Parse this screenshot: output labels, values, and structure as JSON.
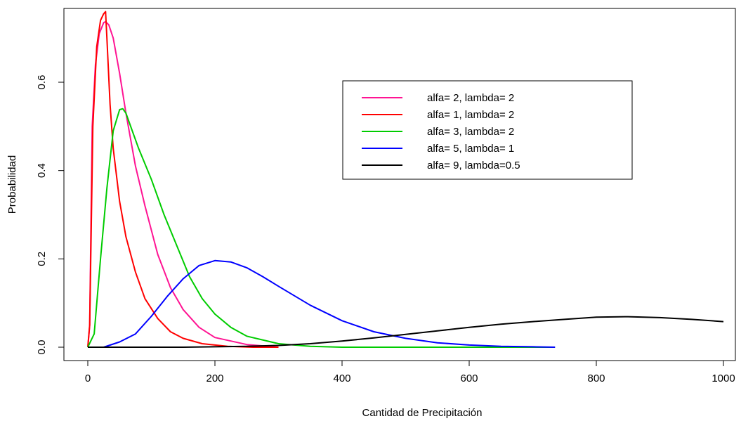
{
  "chart_data": {
    "type": "line",
    "title": "",
    "xlabel": "Cantidad de Precipitación",
    "ylabel": "Probabilidad",
    "xlim": [
      0,
      1000
    ],
    "ylim": [
      0,
      0.76
    ],
    "x_ticks": [
      0,
      200,
      400,
      600,
      800,
      1000
    ],
    "x_tick_labels": [
      "0",
      "200",
      "400",
      "600",
      "800",
      "1000"
    ],
    "y_ticks": [
      0.0,
      0.2,
      0.4,
      0.6
    ],
    "y_tick_labels": [
      "0.0",
      "0.2",
      "0.4",
      "0.6"
    ],
    "grid": false,
    "legend_position": "top-right",
    "series": [
      {
        "name": "alfa= 2, lambda= 2",
        "color": "#ff1493",
        "x": [
          0,
          3,
          7,
          12,
          18,
          25,
          28,
          33,
          40,
          50,
          60,
          75,
          90,
          110,
          130,
          150,
          175,
          200,
          250,
          300
        ],
        "y": [
          0.0,
          0.05,
          0.5,
          0.64,
          0.71,
          0.735,
          0.737,
          0.73,
          0.7,
          0.62,
          0.53,
          0.41,
          0.32,
          0.21,
          0.135,
          0.085,
          0.045,
          0.022,
          0.006,
          0.0
        ]
      },
      {
        "name": "alfa= 1, lambda= 2",
        "color": "#ff0000",
        "x": [
          0,
          3,
          8,
          14,
          20,
          25,
          28,
          30,
          35,
          40,
          50,
          60,
          75,
          90,
          110,
          130,
          150,
          180,
          220,
          260,
          300
        ],
        "y": [
          0.0,
          0.05,
          0.5,
          0.68,
          0.74,
          0.755,
          0.76,
          0.7,
          0.55,
          0.45,
          0.33,
          0.25,
          0.17,
          0.11,
          0.065,
          0.035,
          0.02,
          0.008,
          0.002,
          0.0,
          0.0
        ]
      },
      {
        "name": "alfa= 3, lambda= 2",
        "color": "#00cc00",
        "x": [
          0,
          10,
          20,
          30,
          40,
          50,
          55,
          60,
          70,
          80,
          100,
          120,
          140,
          160,
          180,
          200,
          225,
          250,
          300,
          350,
          400,
          500,
          735
        ],
        "y": [
          0.0,
          0.03,
          0.2,
          0.36,
          0.49,
          0.538,
          0.54,
          0.53,
          0.49,
          0.45,
          0.38,
          0.3,
          0.23,
          0.16,
          0.11,
          0.075,
          0.045,
          0.025,
          0.008,
          0.002,
          0.0,
          0.0,
          0.0
        ]
      },
      {
        "name": "alfa= 5, lambda= 1",
        "color": "#0000ff",
        "x": [
          0,
          25,
          50,
          75,
          100,
          125,
          150,
          175,
          200,
          225,
          250,
          275,
          300,
          350,
          400,
          450,
          500,
          550,
          600,
          650,
          700,
          735
        ],
        "y": [
          0.0,
          0.0,
          0.012,
          0.03,
          0.07,
          0.115,
          0.155,
          0.185,
          0.196,
          0.193,
          0.18,
          0.16,
          0.138,
          0.095,
          0.06,
          0.035,
          0.02,
          0.01,
          0.005,
          0.002,
          0.001,
          0.0
        ]
      },
      {
        "name": "alfa= 9, lambda=0.5",
        "color": "#000000",
        "x": [
          0,
          150,
          250,
          300,
          350,
          400,
          450,
          500,
          550,
          600,
          650,
          700,
          750,
          800,
          850,
          900,
          950,
          1000
        ],
        "y": [
          0.0,
          0.0,
          0.002,
          0.004,
          0.008,
          0.014,
          0.021,
          0.029,
          0.037,
          0.045,
          0.052,
          0.058,
          0.063,
          0.068,
          0.069,
          0.067,
          0.063,
          0.058
        ]
      }
    ]
  }
}
